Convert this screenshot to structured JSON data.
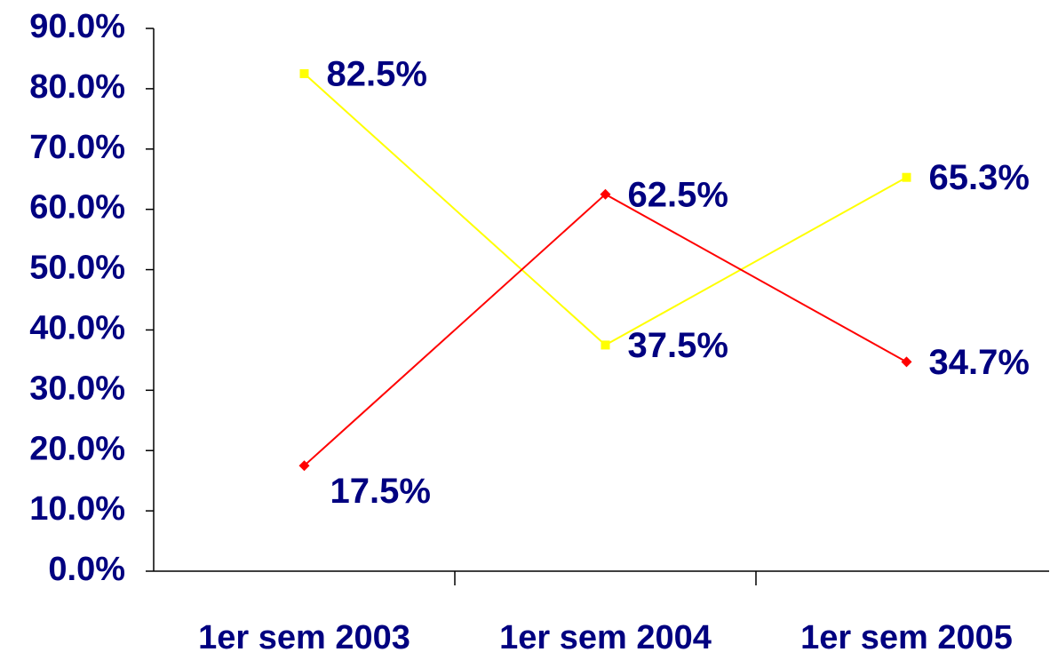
{
  "chart_data": {
    "type": "line",
    "categories": [
      "1er sem 2003",
      "1er sem 2004",
      "1er sem 2005"
    ],
    "series": [
      {
        "color": "#ffff00",
        "marker": "square",
        "values": [
          82.5,
          37.5,
          65.3
        ],
        "value_labels": [
          "82.5%",
          "37.5%",
          "65.3%"
        ]
      },
      {
        "color": "#ff0000",
        "marker": "diamond",
        "values": [
          17.5,
          62.5,
          34.7
        ],
        "value_labels": [
          "17.5%",
          "62.5%",
          "34.7%"
        ]
      }
    ],
    "ylim": [
      0,
      90
    ],
    "yticks": [
      {
        "value": 0,
        "label": "0.0%"
      },
      {
        "value": 10,
        "label": "10.0%"
      },
      {
        "value": 20,
        "label": "20.0%"
      },
      {
        "value": 30,
        "label": "30.0%"
      },
      {
        "value": 40,
        "label": "40.0%"
      },
      {
        "value": 50,
        "label": "50.0%"
      },
      {
        "value": 60,
        "label": "60.0%"
      },
      {
        "value": 70,
        "label": "70.0%"
      },
      {
        "value": 80,
        "label": "80.0%"
      },
      {
        "value": 90,
        "label": "90.0%"
      }
    ],
    "grid": false
  }
}
